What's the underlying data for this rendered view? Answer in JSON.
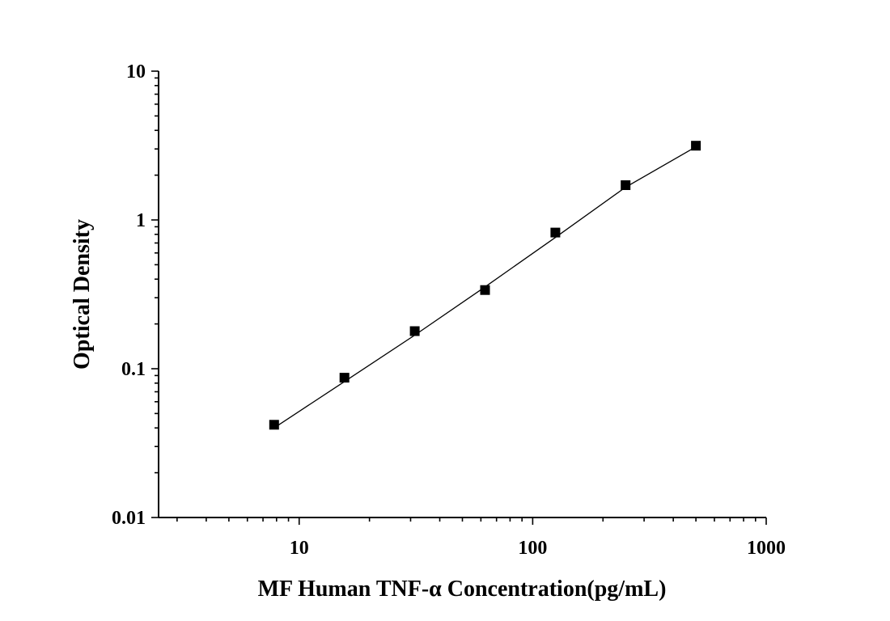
{
  "chart_data": {
    "type": "scatter",
    "title": "",
    "xlabel": "MF Human TNF-α Concentration(pg/mL)",
    "ylabel": "Optical Density",
    "x_scale": "log",
    "y_scale": "log",
    "xlim": [
      2.5,
      1000
    ],
    "ylim": [
      0.01,
      10
    ],
    "x_ticks": [
      10,
      100,
      1000
    ],
    "x_tick_labels": [
      "10",
      "100",
      "1000"
    ],
    "y_ticks": [
      0.01,
      0.1,
      1,
      10
    ],
    "y_tick_labels": [
      "0.01",
      "0.1",
      "1",
      "10"
    ],
    "grid": false,
    "legend": "none",
    "series": [
      {
        "marker": "square",
        "color": "#000000",
        "points": [
          {
            "x": 7.81,
            "y": 0.042
          },
          {
            "x": 15.63,
            "y": 0.087
          },
          {
            "x": 31.25,
            "y": 0.179
          },
          {
            "x": 62.5,
            "y": 0.338
          },
          {
            "x": 125,
            "y": 0.823
          },
          {
            "x": 250,
            "y": 1.712
          },
          {
            "x": 500,
            "y": 3.156
          }
        ]
      }
    ],
    "fit_curve": {
      "color": "#000000",
      "points": [
        {
          "x": 7.81,
          "y": 0.04
        },
        {
          "x": 15.63,
          "y": 0.082
        },
        {
          "x": 31.25,
          "y": 0.168
        },
        {
          "x": 62.5,
          "y": 0.355
        },
        {
          "x": 125,
          "y": 0.762
        },
        {
          "x": 250,
          "y": 1.66
        },
        {
          "x": 500,
          "y": 3.1
        }
      ]
    }
  }
}
